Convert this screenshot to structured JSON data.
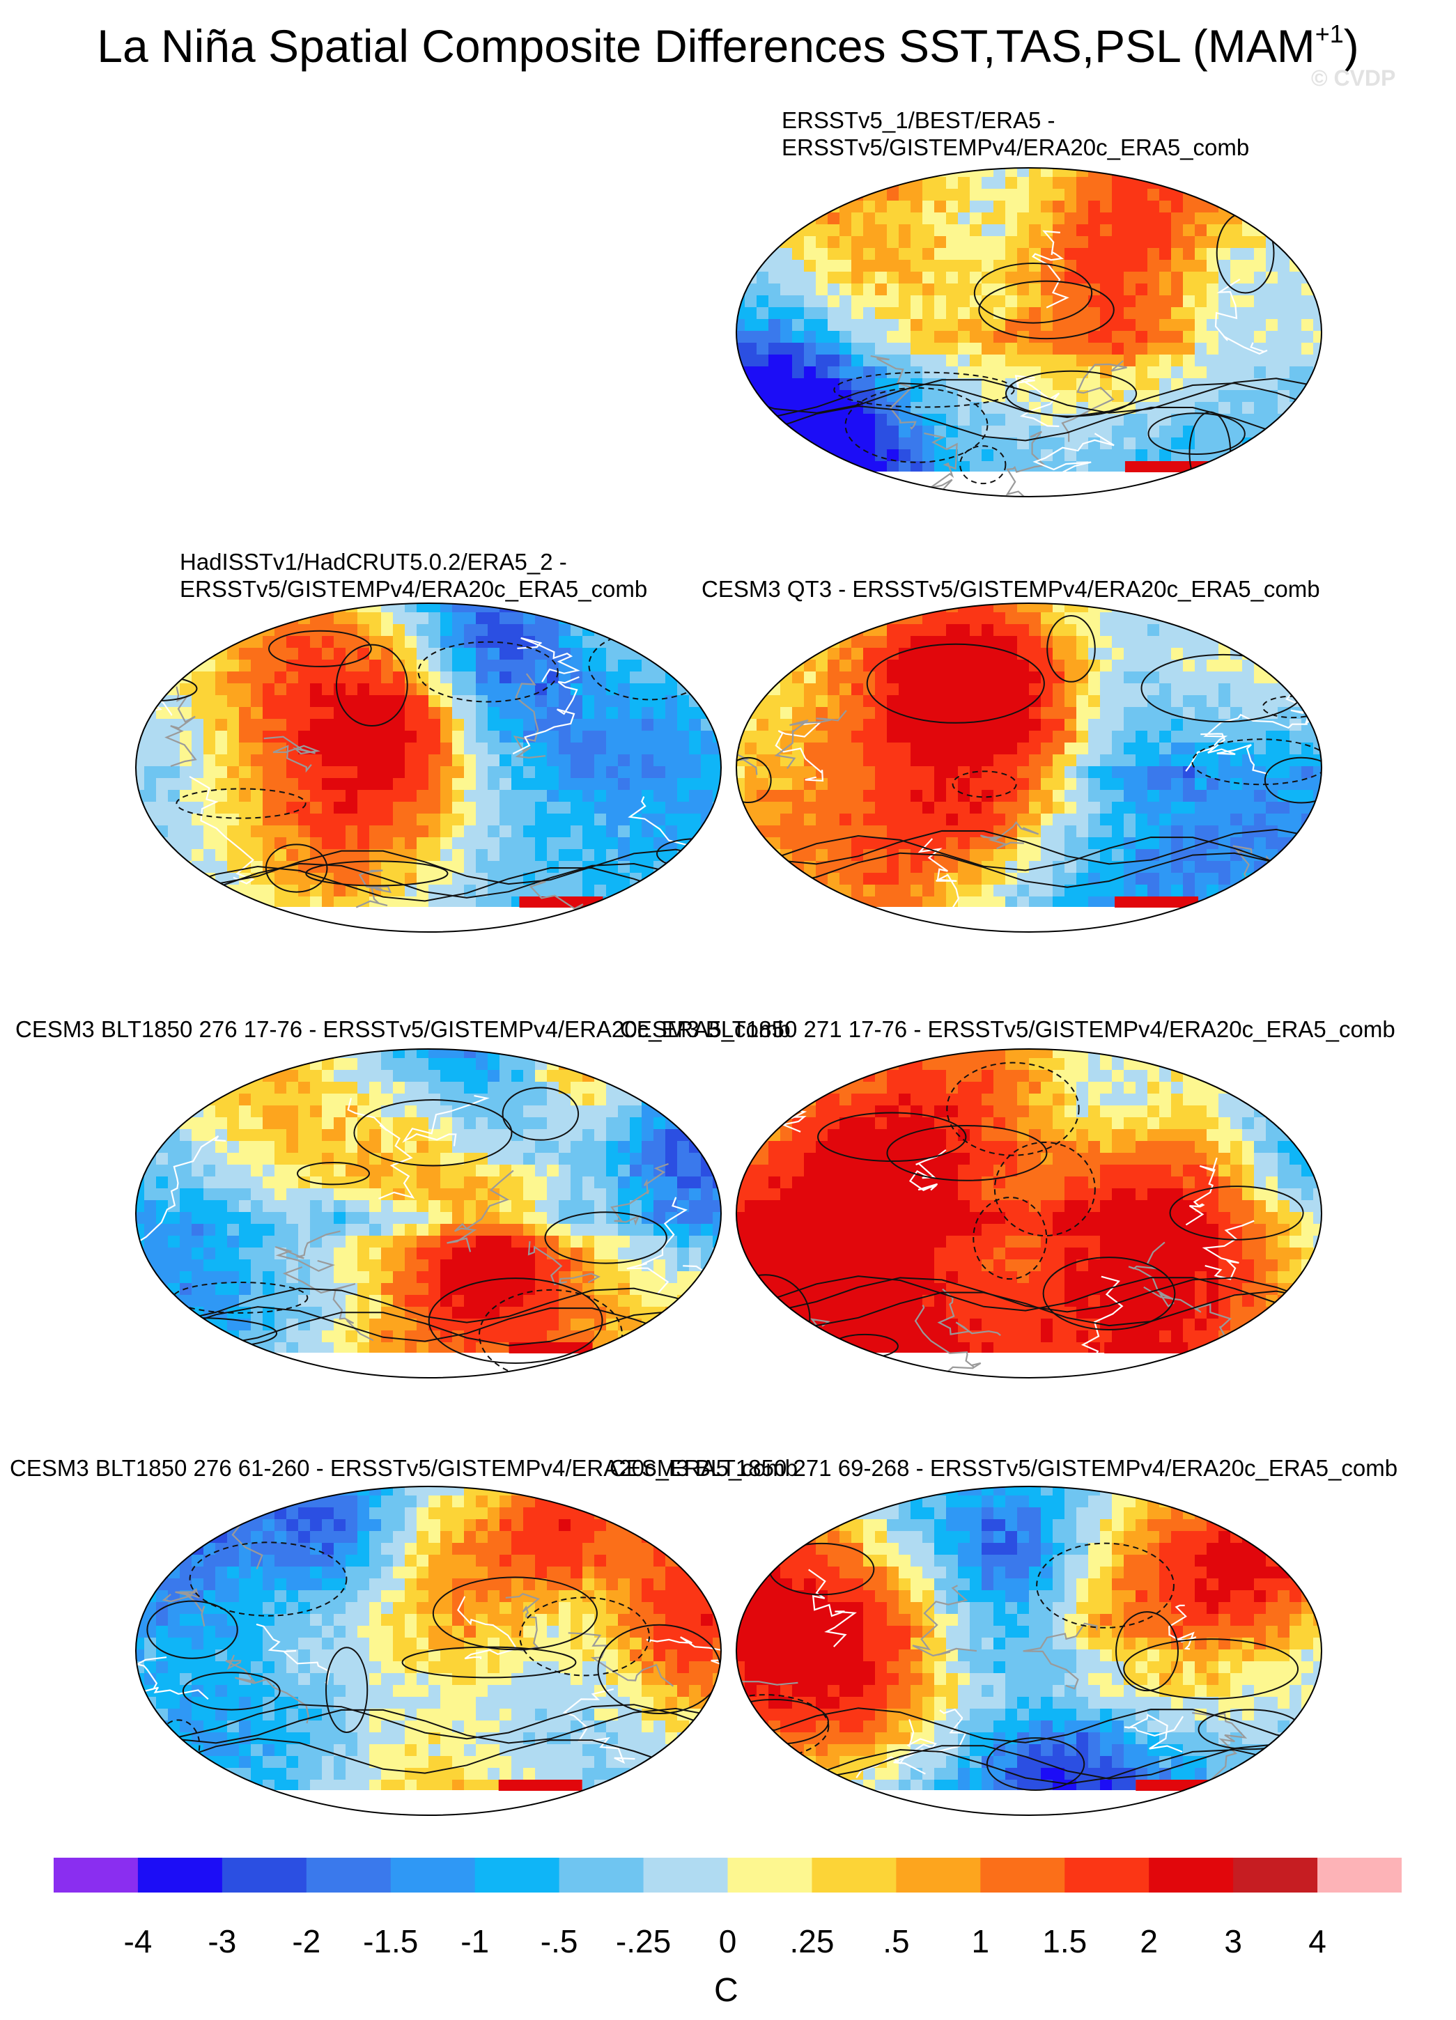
{
  "title": {
    "main": "La Niña Spatial Composite Differences SST,TAS,PSL (MAM",
    "superscript": "+1",
    "close": ")"
  },
  "watermark": "© CVDP",
  "panels": [
    {
      "id": "p1",
      "title_lines": [
        "ERSSTv5_1/BEST/ERA5 -",
        "ERSSTv5/GISTEMPv4/ERA20c_ERA5_comb"
      ]
    },
    {
      "id": "p2",
      "title_lines": [
        "HadISSTv1/HadCRUT5.0.2/ERA5_2 -",
        "ERSSTv5/GISTEMPv4/ERA20c_ERA5_comb"
      ]
    },
    {
      "id": "p3",
      "title_lines": [
        "CESM3 QT3 - ERSSTv5/GISTEMPv4/ERA20c_ERA5_comb"
      ]
    },
    {
      "id": "p4",
      "title_lines": [
        "CESM3 BLT1850 276 17-76 - ERSSTv5/GISTEMPv4/ERA20c_ERA5_comb"
      ]
    },
    {
      "id": "p5",
      "title_lines": [
        "CESM3 BLT1850 271 17-76 - ERSSTv5/GISTEMPv4/ERA20c_ERA5_comb"
      ]
    },
    {
      "id": "p6",
      "title_lines": [
        "CESM3 BLT1850 276 61-260 - ERSSTv5/GISTEMPv4/ERA20c_ERA5_comb"
      ]
    },
    {
      "id": "p7",
      "title_lines": [
        "CESM3 BLT1850 271 69-268 - ERSSTv5/GISTEMPv4/ERA20c_ERA5_comb"
      ]
    }
  ],
  "colorbar": {
    "unit": "C",
    "tick_labels": [
      "-4",
      "-3",
      "-2",
      "-1.5",
      "-1",
      "-.5",
      "-.25",
      "0",
      ".25",
      ".5",
      "1",
      "1.5",
      "2",
      "3",
      "4"
    ],
    "colors": [
      "#8a2ef0",
      "#1c0df6",
      "#2b4fe2",
      "#3a79ec",
      "#2f98f5",
      "#0fb5f7",
      "#6fc5f1",
      "#b0dbf2",
      "#fdf790",
      "#fcd437",
      "#fda51e",
      "#fb6f19",
      "#fb3615",
      "#e1070c",
      "#c61d22",
      "#fdb3b7"
    ]
  },
  "chart_data": {
    "type": "heatmap",
    "projection": "Robinson (global maps)",
    "fill_variable": "SST/TAS composite difference",
    "contour_variable": "PSL composite difference (solid positive, dashed negative)",
    "colorbar_levels": [
      -4,
      -3,
      -2,
      -1.5,
      -1,
      -0.5,
      -0.25,
      0,
      0.25,
      0.5,
      1,
      1.5,
      2,
      3,
      4
    ],
    "unit": "C",
    "panel_count": 7
  }
}
